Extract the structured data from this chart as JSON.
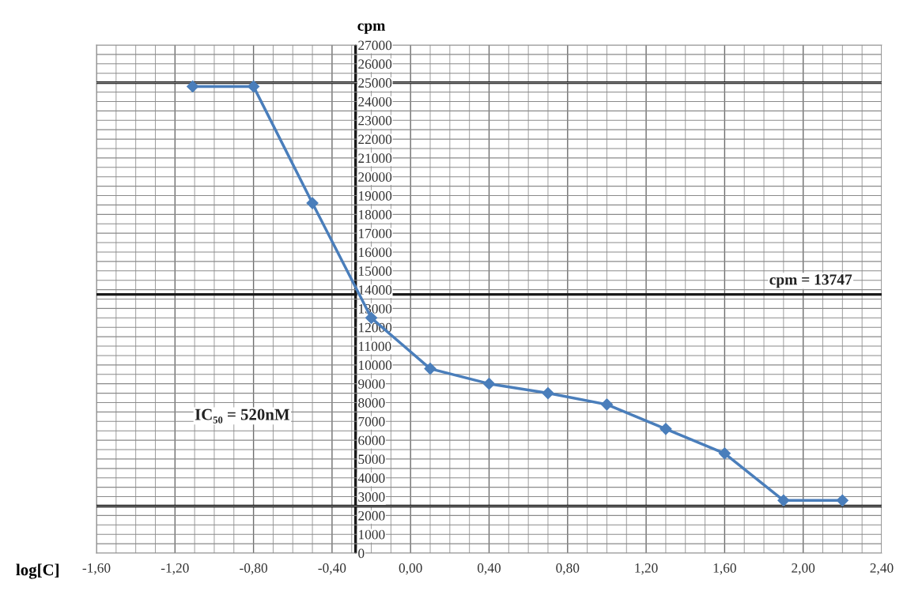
{
  "chart_data": {
    "type": "line",
    "xlabel": "log[C]",
    "ylabel": "cpm",
    "series": [
      {
        "color": "#4a7ebb",
        "marker": "diamond",
        "line_style": "solid",
        "x": [
          -1.11,
          -0.8,
          -0.5,
          -0.2,
          0.1,
          0.4,
          0.7,
          1.0,
          1.3,
          1.6,
          1.9,
          2.2
        ],
        "values": [
          24800,
          24800,
          18600,
          12500,
          9800,
          9000,
          8500,
          7900,
          6600,
          5300,
          2800,
          2800
        ]
      }
    ],
    "xlim": [
      -1.6,
      2.4
    ],
    "xticks": [
      {
        "value": -1.6,
        "label": "-1,60"
      },
      {
        "value": -1.2,
        "label": "-1,20"
      },
      {
        "value": -0.8,
        "label": "-0,80"
      },
      {
        "value": -0.4,
        "label": "-0,40"
      },
      {
        "value": 0.0,
        "label": "0,00"
      },
      {
        "value": 0.4,
        "label": "0,40"
      },
      {
        "value": 0.8,
        "label": "0,80"
      },
      {
        "value": 1.2,
        "label": "1,20"
      },
      {
        "value": 1.6,
        "label": "1,60"
      },
      {
        "value": 2.0,
        "label": "2,00"
      },
      {
        "value": 2.4,
        "label": "2,40"
      }
    ],
    "ylim": [
      0,
      27000
    ],
    "yticks": [
      0,
      1000,
      2000,
      3000,
      4000,
      5000,
      6000,
      7000,
      8000,
      9000,
      10000,
      11000,
      12000,
      13000,
      14000,
      15000,
      16000,
      17000,
      18000,
      19000,
      20000,
      21000,
      22000,
      23000,
      24000,
      25000,
      26000,
      27000
    ],
    "ref_lines": [
      {
        "axis": "y",
        "value": 25000,
        "color": "#1a1a1a"
      },
      {
        "axis": "y",
        "value": 13747,
        "label": "cpm = 13747",
        "color": "#1a1a1a"
      },
      {
        "axis": "y",
        "value": 2500,
        "color": "#1a1a1a"
      },
      {
        "axis": "x",
        "value": -0.28,
        "color": "#1a1a1a"
      }
    ],
    "annotations": [
      "IC₅₀ = 520nM"
    ],
    "grid": true,
    "legend": false
  }
}
